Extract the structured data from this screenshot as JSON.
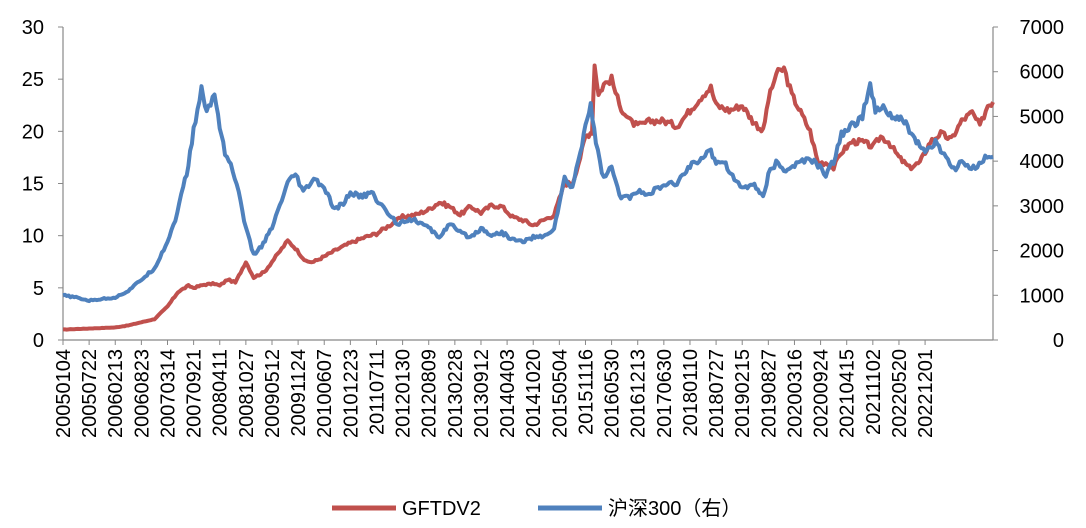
{
  "chart_data": {
    "type": "line",
    "title": "",
    "xlabel": "",
    "ylabel_left": "",
    "ylabel_right": "",
    "left_axis": {
      "min": 0,
      "max": 30,
      "ticks": [
        "0",
        "5",
        "10",
        "15",
        "20",
        "25",
        "30"
      ]
    },
    "right_axis": {
      "min": 0,
      "max": 7000,
      "ticks": [
        "0",
        "1000",
        "2000",
        "3000",
        "4000",
        "5000",
        "6000",
        "7000"
      ]
    },
    "categories": [
      "20050104",
      "20050722",
      "20060213",
      "20060823",
      "20070314",
      "20070921",
      "20080411",
      "20081027",
      "20090512",
      "20091124",
      "20100607",
      "20101223",
      "20110711",
      "20120130",
      "20120809",
      "20130228",
      "20130912",
      "20140403",
      "20141020",
      "20150504",
      "20151116",
      "20160530",
      "20161213",
      "20170630",
      "20180110",
      "20180727",
      "20190215",
      "20190827",
      "20200316",
      "20200924",
      "20210415",
      "20211102",
      "20220520",
      "20221201"
    ],
    "grid": false,
    "legend_position": "bottom",
    "series": [
      {
        "name": "GFTDV2",
        "axis": "left",
        "color": "#C0504D",
        "points": [
          [
            0,
            1.0
          ],
          [
            1,
            1.1
          ],
          [
            2,
            1.2
          ],
          [
            2.5,
            1.4
          ],
          [
            3,
            1.7
          ],
          [
            3.5,
            2.0
          ],
          [
            4,
            3.2
          ],
          [
            4.4,
            4.6
          ],
          [
            4.8,
            5.2
          ],
          [
            5,
            5.0
          ],
          [
            5.4,
            5.3
          ],
          [
            5.8,
            5.4
          ],
          [
            6,
            5.2
          ],
          [
            6.3,
            5.8
          ],
          [
            6.6,
            5.5
          ],
          [
            7,
            7.5
          ],
          [
            7.3,
            6.0
          ],
          [
            7.7,
            6.5
          ],
          [
            8,
            7.5
          ],
          [
            8.3,
            8.5
          ],
          [
            8.6,
            9.5
          ],
          [
            8.9,
            8.8
          ],
          [
            9.3,
            7.5
          ],
          [
            9.6,
            7.5
          ],
          [
            10,
            8.0
          ],
          [
            10.5,
            8.7
          ],
          [
            11,
            9.3
          ],
          [
            11.5,
            9.8
          ],
          [
            12,
            10.2
          ],
          [
            12.5,
            11.0
          ],
          [
            13,
            11.8
          ],
          [
            13.5,
            12.0
          ],
          [
            14,
            12.5
          ],
          [
            14.4,
            13.2
          ],
          [
            14.8,
            12.8
          ],
          [
            15.2,
            12.0
          ],
          [
            15.6,
            12.8
          ],
          [
            16,
            12.2
          ],
          [
            16.4,
            12.9
          ],
          [
            16.8,
            12.8
          ],
          [
            17.2,
            11.8
          ],
          [
            17.6,
            11.5
          ],
          [
            18,
            11.0
          ],
          [
            18.4,
            11.5
          ],
          [
            18.8,
            12.0
          ],
          [
            19.2,
            15.0
          ],
          [
            19.5,
            15.0
          ],
          [
            19.8,
            17.5
          ],
          [
            20,
            19.5
          ],
          [
            20.25,
            20.0
          ],
          [
            20.35,
            26.5
          ],
          [
            20.5,
            23.5
          ],
          [
            20.7,
            24.5
          ],
          [
            21,
            25.0
          ],
          [
            21.3,
            22.5
          ],
          [
            21.7,
            21.0
          ],
          [
            22,
            20.5
          ],
          [
            22.5,
            21.0
          ],
          [
            23,
            21.0
          ],
          [
            23.5,
            20.5
          ],
          [
            24,
            22.0
          ],
          [
            24.5,
            23.5
          ],
          [
            24.8,
            24.2
          ],
          [
            25,
            22.5
          ],
          [
            25.5,
            22.0
          ],
          [
            26,
            22.5
          ],
          [
            26.4,
            21.0
          ],
          [
            26.8,
            20.0
          ],
          [
            27,
            23.0
          ],
          [
            27.3,
            25.5
          ],
          [
            27.6,
            26.0
          ],
          [
            27.9,
            23.5
          ],
          [
            28.3,
            21.5
          ],
          [
            28.6,
            20.0
          ],
          [
            28.9,
            17.0
          ],
          [
            29.2,
            17.0
          ],
          [
            29.5,
            16.5
          ],
          [
            29.8,
            18.0
          ],
          [
            30.2,
            19.0
          ],
          [
            30.6,
            19.0
          ],
          [
            31,
            18.5
          ],
          [
            31.3,
            19.5
          ],
          [
            31.6,
            19.0
          ],
          [
            32,
            17.5
          ],
          [
            32.4,
            16.5
          ],
          [
            32.8,
            17.0
          ],
          [
            33.2,
            19.0
          ],
          [
            33.6,
            19.8
          ],
          [
            34,
            19.2
          ],
          [
            34.4,
            21.0
          ],
          [
            34.8,
            21.8
          ],
          [
            35.1,
            20.5
          ],
          [
            35.4,
            22.5
          ],
          [
            35.6,
            22.8
          ]
        ]
      },
      {
        "name": "沪深300（右）",
        "axis": "right",
        "color": "#4F81BD",
        "points": [
          [
            0,
            1000
          ],
          [
            0.5,
            950
          ],
          [
            1,
            880
          ],
          [
            1.5,
            920
          ],
          [
            2,
            950
          ],
          [
            2.5,
            1100
          ],
          [
            3,
            1350
          ],
          [
            3.5,
            1600
          ],
          [
            4,
            2200
          ],
          [
            4.3,
            2700
          ],
          [
            4.6,
            3400
          ],
          [
            4.8,
            3900
          ],
          [
            5,
            4700
          ],
          [
            5.3,
            5600
          ],
          [
            5.5,
            5100
          ],
          [
            5.8,
            5500
          ],
          [
            6,
            4800
          ],
          [
            6.2,
            4200
          ],
          [
            6.5,
            3800
          ],
          [
            6.8,
            3100
          ],
          [
            7,
            2500
          ],
          [
            7.3,
            1900
          ],
          [
            7.6,
            2100
          ],
          [
            8,
            2500
          ],
          [
            8.3,
            3000
          ],
          [
            8.6,
            3500
          ],
          [
            8.9,
            3700
          ],
          [
            9.2,
            3300
          ],
          [
            9.6,
            3600
          ],
          [
            10,
            3400
          ],
          [
            10.4,
            2900
          ],
          [
            10.8,
            3100
          ],
          [
            11,
            3300
          ],
          [
            11.4,
            3200
          ],
          [
            11.8,
            3300
          ],
          [
            12.2,
            3000
          ],
          [
            12.5,
            2800
          ],
          [
            12.8,
            2600
          ],
          [
            13.2,
            2700
          ],
          [
            13.6,
            2650
          ],
          [
            14,
            2500
          ],
          [
            14.4,
            2300
          ],
          [
            14.8,
            2600
          ],
          [
            15.2,
            2400
          ],
          [
            15.6,
            2300
          ],
          [
            16,
            2500
          ],
          [
            16.4,
            2350
          ],
          [
            16.8,
            2400
          ],
          [
            17.2,
            2250
          ],
          [
            17.6,
            2200
          ],
          [
            18,
            2300
          ],
          [
            18.4,
            2300
          ],
          [
            18.8,
            2500
          ],
          [
            19.2,
            3600
          ],
          [
            19.5,
            3400
          ],
          [
            19.8,
            4200
          ],
          [
            20,
            4800
          ],
          [
            20.2,
            5300
          ],
          [
            20.4,
            4400
          ],
          [
            20.7,
            3600
          ],
          [
            21,
            3900
          ],
          [
            21.3,
            3200
          ],
          [
            21.7,
            3200
          ],
          [
            22,
            3300
          ],
          [
            22.5,
            3300
          ],
          [
            23,
            3450
          ],
          [
            23.5,
            3500
          ],
          [
            24,
            3900
          ],
          [
            24.5,
            4100
          ],
          [
            24.8,
            4200
          ],
          [
            25,
            4000
          ],
          [
            25.3,
            4000
          ],
          [
            25.7,
            3600
          ],
          [
            26,
            3400
          ],
          [
            26.4,
            3500
          ],
          [
            26.8,
            3200
          ],
          [
            27,
            3700
          ],
          [
            27.3,
            3950
          ],
          [
            27.6,
            3800
          ],
          [
            28,
            3900
          ],
          [
            28.3,
            4000
          ],
          [
            28.6,
            4050
          ],
          [
            28.9,
            3900
          ],
          [
            29.2,
            3700
          ],
          [
            29.5,
            4000
          ],
          [
            29.8,
            4600
          ],
          [
            30.2,
            4800
          ],
          [
            30.6,
            5000
          ],
          [
            30.9,
            5700
          ],
          [
            31.1,
            5100
          ],
          [
            31.4,
            5200
          ],
          [
            31.8,
            4950
          ],
          [
            32.2,
            4900
          ],
          [
            32.6,
            4500
          ],
          [
            33,
            4200
          ],
          [
            33.4,
            4400
          ],
          [
            33.8,
            4100
          ],
          [
            34.1,
            3800
          ],
          [
            34.4,
            4000
          ],
          [
            34.7,
            3800
          ],
          [
            35,
            3900
          ],
          [
            35.3,
            4100
          ],
          [
            35.6,
            4100
          ]
        ]
      }
    ]
  },
  "legend": {
    "items": [
      {
        "label": "GFTDV2",
        "color": "#C0504D"
      },
      {
        "label": "沪深300（右）",
        "color": "#4F81BD"
      }
    ]
  }
}
